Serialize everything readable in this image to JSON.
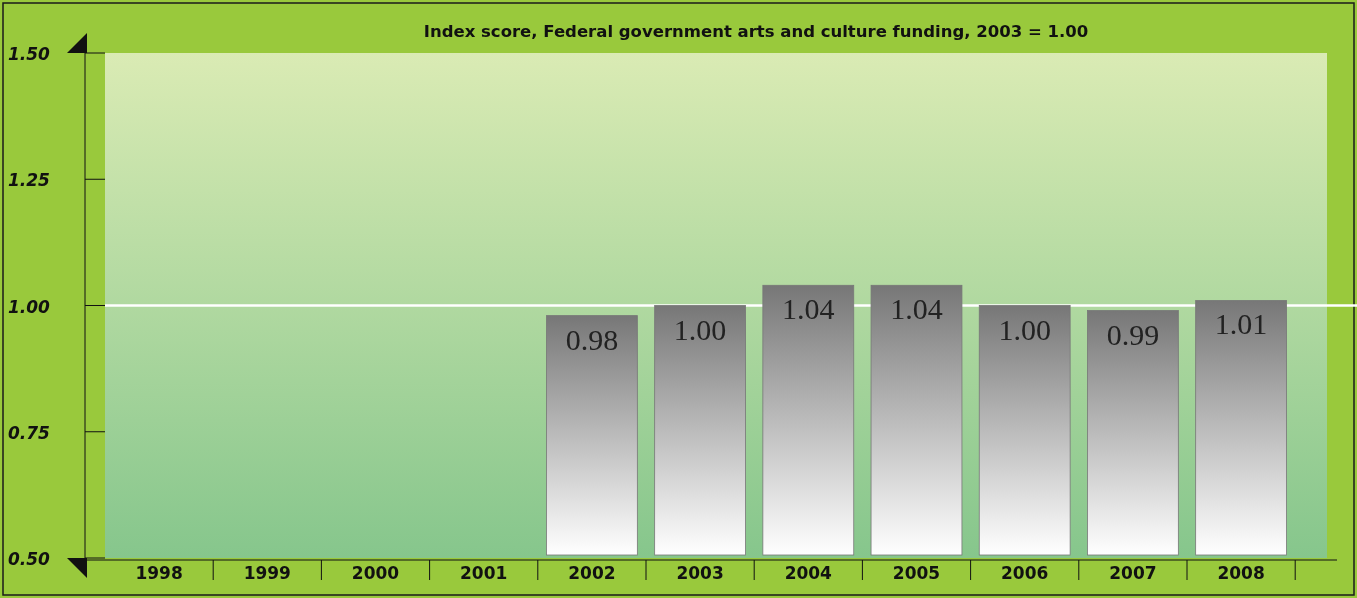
{
  "chart_data": {
    "type": "bar",
    "title": "Index score, Federal government arts and culture funding, 2003 = 1.00",
    "categories": [
      "1998",
      "1999",
      "2000",
      "2001",
      "2002",
      "2003",
      "2004",
      "2005",
      "2006",
      "2007",
      "2008"
    ],
    "values": [
      null,
      null,
      null,
      null,
      0.98,
      1.0,
      1.04,
      1.04,
      1.0,
      0.99,
      1.01
    ],
    "color": "#777777",
    "ylim": [
      0.5,
      1.5
    ],
    "yticks": [
      {
        "value": 0.5,
        "label": "0.50"
      },
      {
        "value": 0.75,
        "label": "0.75"
      },
      {
        "value": 1,
        "label": "1.00"
      },
      {
        "value": 1.25,
        "label": "1.25"
      },
      {
        "value": 1.5,
        "label": "1.50"
      }
    ],
    "ref_lines": [
      {
        "axis": "y",
        "value": 1,
        "color": "#ffffff"
      }
    ],
    "value_labels": [
      null,
      null,
      null,
      null,
      "0.98",
      "1.00",
      "1.04",
      "1.04",
      "1.00",
      "0.99",
      "1.01"
    ]
  }
}
